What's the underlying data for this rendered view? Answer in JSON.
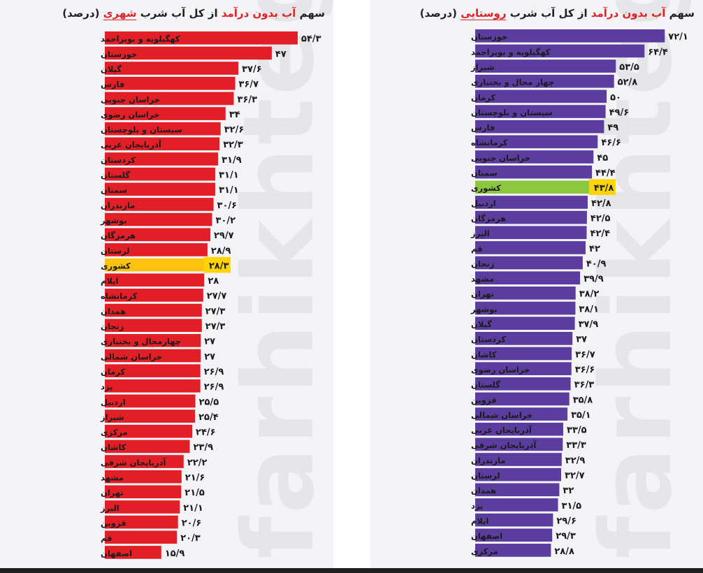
{
  "colors": {
    "urban_bar": "#e21f26",
    "rural_bar": "#5a3d9e",
    "national_urban": "#ffc20e",
    "national_rural": "#8dc63f",
    "value_highlight": "#ffd400"
  },
  "watermark": "farhikhtegan",
  "chart_data": [
    {
      "type": "bar",
      "orientation": "horizontal",
      "title_pre": "سهم ",
      "title_highlight": "آب بدون درآمد",
      "title_mid": " از کل آب شرب ",
      "title_underlined": "شهری",
      "title_post": " (درصد)",
      "highlight_category": "کشوری",
      "xlim": [
        0,
        60
      ],
      "categories": [
        "کهگیلویه و بویراحمد",
        "خوزستان",
        "گیلان",
        "فارس",
        "خراسان جنوبی",
        "خراسان رضوی",
        "سیستان و بلوچستان",
        "آذربایجان غربی",
        "کردستان",
        "گلستان",
        "سمنان",
        "مازندران",
        "بوشهر",
        "هرمزگان",
        "لرستان",
        "کشوری",
        "ایلام",
        "کرمانشاه",
        "همدان",
        "زنجان",
        "چهارمحال و بختیاری",
        "خراسان شمالی",
        "کرمان",
        "یزد",
        "اردبیل",
        "شیراز",
        "مرکزی",
        "کاشان",
        "آذربایجان شرقی",
        "مشهد",
        "تهران",
        "البرز",
        "قزوین",
        "قم",
        "اصفهان"
      ],
      "values": [
        54.3,
        47,
        37.6,
        36.7,
        36.3,
        34,
        32.6,
        32.3,
        31.9,
        31.1,
        31.1,
        30.6,
        30.2,
        29.7,
        28.9,
        28.3,
        28,
        27.7,
        27.3,
        27.3,
        27,
        27,
        26.9,
        26.9,
        25.5,
        25.4,
        24.6,
        23.9,
        22.2,
        21.6,
        21.5,
        21.1,
        20.6,
        20.3,
        15.9
      ],
      "value_labels": [
        "۵۴/۳",
        "۴۷",
        "۳۷/۶",
        "۳۶/۷",
        "۳۶/۳",
        "۳۴",
        "۳۲/۶",
        "۳۲/۳",
        "۳۱/۹",
        "۳۱/۱",
        "۳۱/۱",
        "۳۰/۶",
        "۳۰/۲",
        "۲۹/۷",
        "۲۸/۹",
        "۲۸/۳",
        "۲۸",
        "۲۷/۷",
        "۲۷/۳",
        "۲۷/۳",
        "۲۷",
        "۲۷",
        "۲۶/۹",
        "۲۶/۹",
        "۲۵/۵",
        "۲۵/۴",
        "۲۴/۶",
        "۲۳/۹",
        "۲۲/۲",
        "۲۱/۶",
        "۲۱/۵",
        "۲۱/۱",
        "۲۰/۶",
        "۲۰/۳",
        "۱۵/۹"
      ]
    },
    {
      "type": "bar",
      "orientation": "horizontal",
      "title_pre": "سهم ",
      "title_highlight": "آب بدون درآمد",
      "title_mid": " از کل آب شرب ",
      "title_underlined": "روستایی",
      "title_post": " (درصد)",
      "highlight_category": "کشوری",
      "xlim": [
        0,
        80
      ],
      "categories": [
        "خوزستان",
        "کهگیلویه و بویراحمد",
        "شیراز",
        "چهار محال و بختیاری",
        "کرمان",
        "سیستان و بلوچستان",
        "فارس",
        "کرمانشاه",
        "خراسان جنوبی",
        "سمنان",
        "کشوری",
        "اردبیل",
        "هرمزگان",
        "البرز",
        "قم",
        "زنجان",
        "مشهد",
        "تهران",
        "بوشهر",
        "گیلان",
        "کردستان",
        "کاشان",
        "خراسان رضوی",
        "گلستان",
        "قزوین",
        "خراسان شمالی",
        "آذربایجان غربی",
        "آذربایجان شرقی",
        "مازندران",
        "لرستان",
        "همدان",
        "یزد",
        "ایلام",
        "اصفهان",
        "مرکزی"
      ],
      "values": [
        72.1,
        64.4,
        53.5,
        52.8,
        50,
        49.6,
        49,
        46.6,
        45,
        44.4,
        43.8,
        42.8,
        42.5,
        42.4,
        42,
        40.9,
        39.9,
        38.2,
        38.1,
        37.9,
        37,
        36.7,
        36.6,
        36.3,
        35.8,
        35.1,
        33.5,
        33.3,
        32.9,
        32.7,
        32,
        31.5,
        29.6,
        29.3,
        28.8
      ],
      "value_labels": [
        "۷۲/۱",
        "۶۴/۴",
        "۵۳/۵",
        "۵۲/۸",
        "۵۰",
        "۴۹/۶",
        "۴۹",
        "۴۶/۶",
        "۴۵",
        "۴۴/۴",
        "۴۳/۸",
        "۴۲/۸",
        "۴۲/۵",
        "۴۲/۴",
        "۴۲",
        "۴۰/۹",
        "۳۹/۹",
        "۳۸/۲",
        "۳۸/۱",
        "۳۷/۹",
        "۳۷",
        "۳۶/۷",
        "۳۶/۶",
        "۳۶/۳",
        "۳۵/۸",
        "۳۵/۱",
        "۳۳/۵",
        "۳۳/۳",
        "۳۲/۹",
        "۳۲/۷",
        "۳۲",
        "۳۱/۵",
        "۲۹/۶",
        "۲۹/۳",
        "۲۸/۸"
      ]
    }
  ]
}
